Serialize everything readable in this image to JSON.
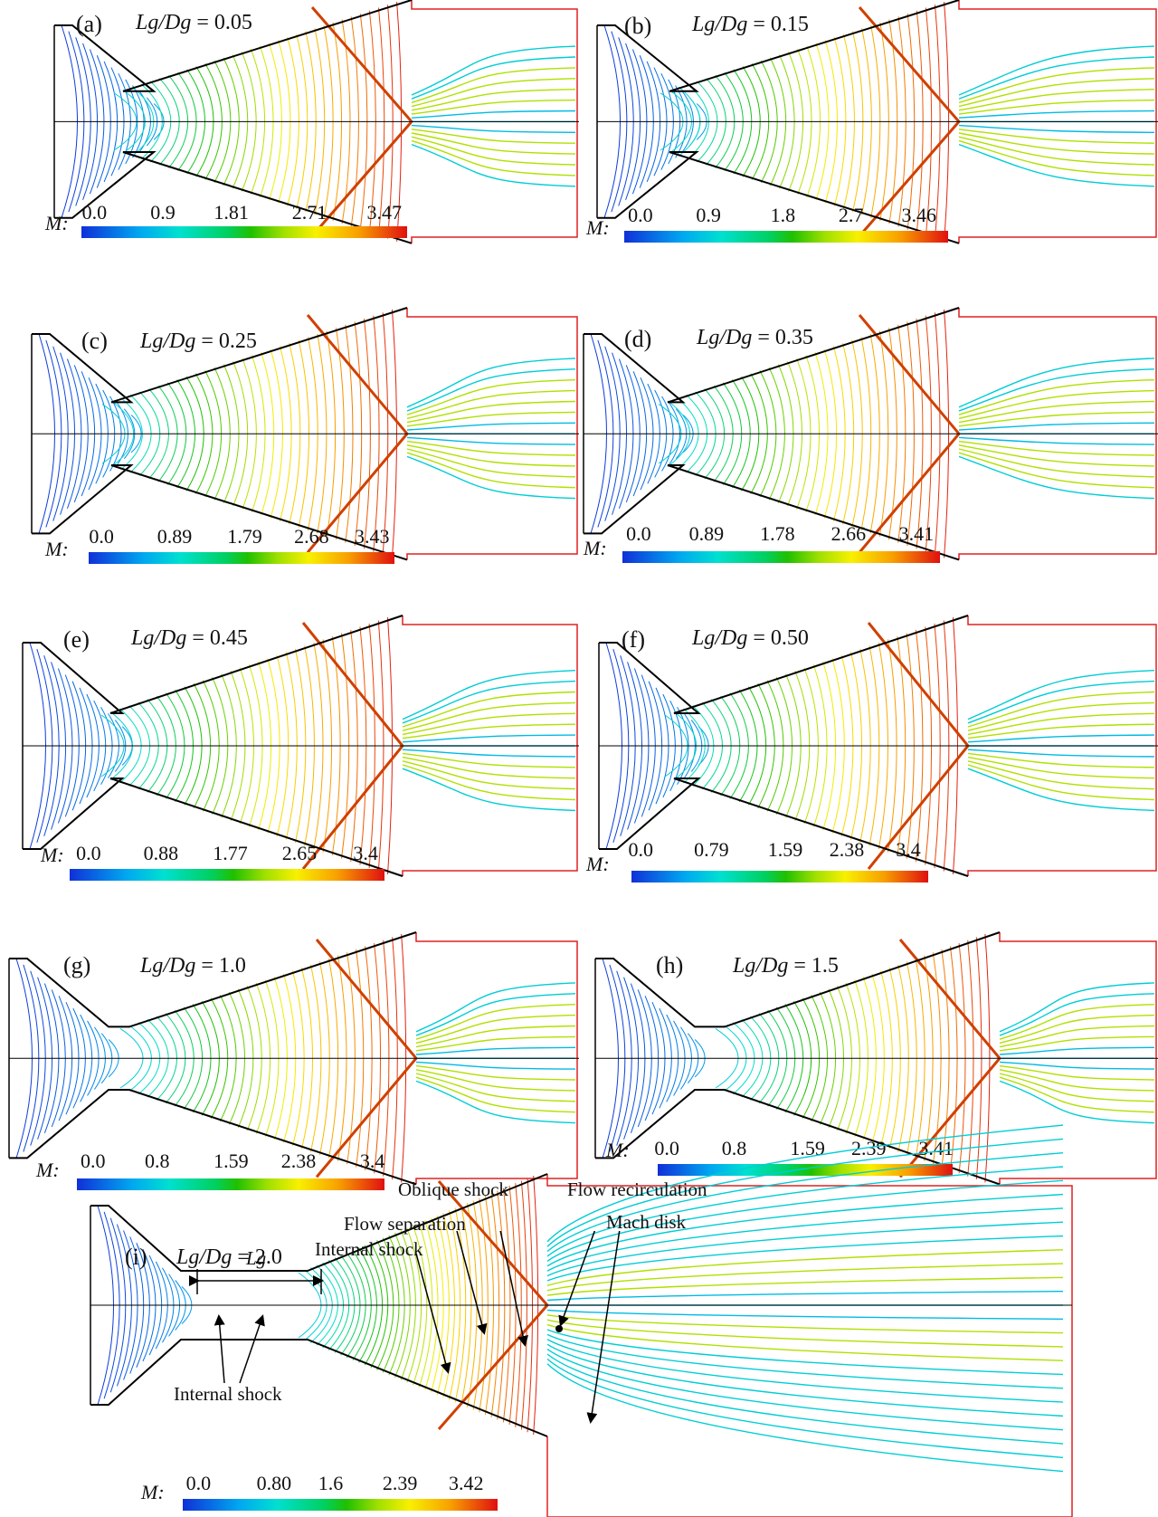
{
  "panels": [
    {
      "id": "a",
      "label": "(a)",
      "ratio_lhs": "Lg/Dg",
      "ratio_value": "0.05",
      "ticks": [
        "0.0",
        "0.9",
        "1.81",
        "2.71",
        "3.47"
      ]
    },
    {
      "id": "b",
      "label": "(b)",
      "ratio_lhs": "Lg/Dg",
      "ratio_value": "0.15",
      "ticks": [
        "0.0",
        "0.9",
        "1.8",
        "2.7",
        "3.46"
      ]
    },
    {
      "id": "c",
      "label": "(c)",
      "ratio_lhs": "Lg/Dg",
      "ratio_value": "0.25",
      "ticks": [
        "0.0",
        "0.89",
        "1.79",
        "2.68",
        "3.43"
      ]
    },
    {
      "id": "d",
      "label": "(d)",
      "ratio_lhs": "Lg/Dg",
      "ratio_value": "0.35",
      "ticks": [
        "0.0",
        "0.89",
        "1.78",
        "2.66",
        "3.41"
      ]
    },
    {
      "id": "e",
      "label": "(e)",
      "ratio_lhs": "Lg/Dg",
      "ratio_value": "0.45",
      "ticks": [
        "0.0",
        "0.88",
        "1.77",
        "2.65",
        "3.4"
      ]
    },
    {
      "id": "f",
      "label": "(f)",
      "ratio_lhs": "Lg/Dg",
      "ratio_value": "0.50",
      "ticks": [
        "0.0",
        "0.79",
        "1.59",
        "2.38",
        "3.4"
      ]
    },
    {
      "id": "g",
      "label": "(g)",
      "ratio_lhs": "Lg/Dg",
      "ratio_value": "1.0",
      "ticks": [
        "0.0",
        "0.8",
        "1.59",
        "2.38",
        "3.4"
      ]
    },
    {
      "id": "h",
      "label": "(h)",
      "ratio_lhs": "Lg/Dg",
      "ratio_value": "1.5",
      "ticks": [
        "0.0",
        "0.8",
        "1.59",
        "2.39",
        "3.41"
      ]
    },
    {
      "id": "i",
      "label": "(i)",
      "ratio_lhs": "Lg/Dg",
      "ratio_value": "2.0",
      "ticks": [
        "0.0",
        "0.80",
        "1.6",
        "2.39",
        "3.42"
      ]
    }
  ],
  "colorbar_label": "M:",
  "annotations": {
    "oblique_shock": "Oblique shock",
    "flow_recirculation": "Flow recirculation",
    "flow_separation": "Flow separation",
    "internal_shock_top": "Internal shock",
    "mach_disk": "Mach disk",
    "lg": "Lg",
    "internal_shock_bottom": "Internal shock"
  },
  "colors": {
    "wall": "#000000",
    "domain_outline": "#e02020",
    "colormap": [
      "#1030d8",
      "#00a8f0",
      "#00e0d0",
      "#20c000",
      "#f8f000",
      "#f8a000",
      "#e01010"
    ]
  }
}
